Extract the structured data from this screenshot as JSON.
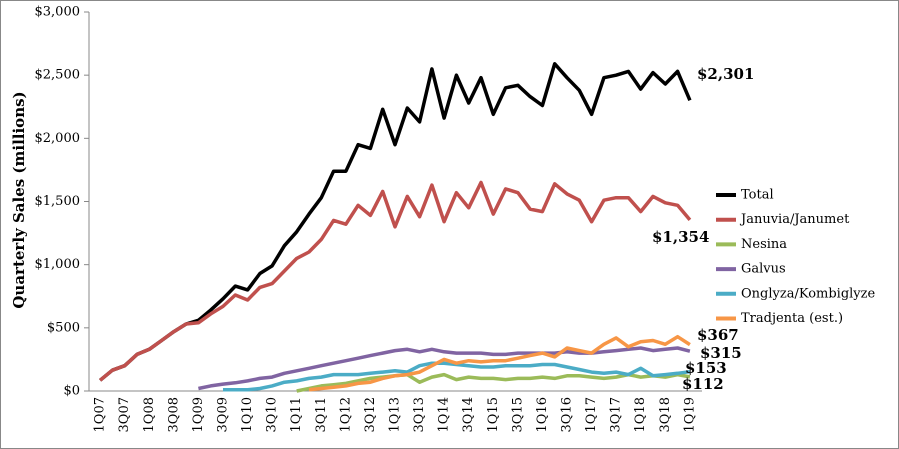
{
  "chart_data": {
    "type": "line",
    "y_label": "Quarterly Sales (millions)",
    "categories": [
      "1Q07",
      null,
      "3Q07",
      null,
      "1Q08",
      null,
      "3Q08",
      null,
      "1Q09",
      null,
      "3Q09",
      null,
      "1Q10",
      null,
      "3Q10",
      null,
      "1Q11",
      null,
      "3Q11",
      null,
      "1Q12",
      null,
      "3Q12",
      null,
      "1Q13",
      null,
      "3Q13",
      null,
      "1Q14",
      null,
      "3Q14",
      null,
      "1Q15",
      null,
      "3Q15",
      null,
      "1Q16",
      null,
      "3Q16",
      null,
      "1Q17",
      null,
      "3Q17",
      null,
      "1Q18",
      null,
      "3Q18",
      null,
      "1Q19"
    ],
    "ylim": [
      0,
      3000
    ],
    "yticks": [
      {
        "value": 0,
        "label": "$0"
      },
      {
        "value": 500,
        "label": "$500"
      },
      {
        "value": 1000,
        "label": "$1,000"
      },
      {
        "value": 1500,
        "label": "$1,500"
      },
      {
        "value": 2000,
        "label": "$2,000"
      },
      {
        "value": 2500,
        "label": "$2,500"
      },
      {
        "value": 3000,
        "label": "$3,000"
      }
    ],
    "legend": "right",
    "series": [
      {
        "name": "Total",
        "color": "#000000",
        "values": [
          85,
          165,
          200,
          290,
          330,
          400,
          470,
          530,
          560,
          640,
          730,
          830,
          800,
          930,
          990,
          1150,
          1260,
          1400,
          1530,
          1740,
          1740,
          1950,
          1920,
          2230,
          1950,
          2240,
          2130,
          2550,
          2160,
          2500,
          2280,
          2480,
          2190,
          2400,
          2420,
          2330,
          2260,
          2590,
          2480,
          2380,
          2190,
          2480,
          2500,
          2530,
          2390,
          2520,
          2430,
          2530,
          2301
        ],
        "value_labels": [
          null,
          null,
          null,
          null,
          null,
          null,
          null,
          null,
          null,
          null,
          null,
          null,
          null,
          null,
          null,
          null,
          null,
          null,
          null,
          null,
          null,
          null,
          null,
          null,
          null,
          null,
          null,
          null,
          null,
          null,
          null,
          null,
          null,
          null,
          null,
          null,
          null,
          null,
          null,
          null,
          null,
          null,
          null,
          null,
          null,
          null,
          null,
          null,
          "$2,301"
        ]
      },
      {
        "name": "Januvia/Janumet",
        "color": "#c0504d",
        "values": [
          85,
          165,
          200,
          290,
          330,
          400,
          470,
          530,
          540,
          610,
          670,
          760,
          720,
          820,
          850,
          950,
          1050,
          1100,
          1200,
          1350,
          1320,
          1470,
          1390,
          1580,
          1300,
          1540,
          1380,
          1630,
          1340,
          1570,
          1450,
          1650,
          1400,
          1600,
          1570,
          1440,
          1420,
          1640,
          1560,
          1510,
          1340,
          1510,
          1530,
          1530,
          1420,
          1540,
          1490,
          1470,
          1354
        ],
        "value_labels": [
          null,
          null,
          null,
          null,
          null,
          null,
          null,
          null,
          null,
          null,
          null,
          null,
          null,
          null,
          null,
          null,
          null,
          null,
          null,
          null,
          null,
          null,
          null,
          null,
          null,
          null,
          null,
          null,
          null,
          null,
          null,
          null,
          null,
          null,
          null,
          null,
          null,
          null,
          null,
          null,
          null,
          null,
          null,
          null,
          null,
          null,
          null,
          null,
          "$1,354"
        ]
      },
      {
        "name": "Nesina",
        "color": "#9bbb59",
        "values": [
          null,
          null,
          null,
          null,
          null,
          null,
          null,
          null,
          null,
          null,
          null,
          null,
          null,
          null,
          null,
          null,
          0,
          20,
          40,
          50,
          60,
          80,
          100,
          110,
          120,
          130,
          70,
          110,
          130,
          90,
          110,
          100,
          100,
          90,
          100,
          100,
          110,
          100,
          120,
          120,
          110,
          100,
          110,
          130,
          110,
          120,
          110,
          130,
          112
        ],
        "value_labels": [
          null,
          null,
          null,
          null,
          null,
          null,
          null,
          null,
          null,
          null,
          null,
          null,
          null,
          null,
          null,
          null,
          null,
          null,
          null,
          null,
          null,
          null,
          null,
          null,
          null,
          null,
          null,
          null,
          null,
          null,
          null,
          null,
          null,
          null,
          null,
          null,
          null,
          null,
          null,
          null,
          null,
          null,
          null,
          null,
          null,
          null,
          null,
          null,
          "$112"
        ]
      },
      {
        "name": "Galvus",
        "color": "#8064a2",
        "values": [
          null,
          null,
          null,
          null,
          null,
          null,
          null,
          null,
          20,
          40,
          55,
          65,
          80,
          100,
          110,
          140,
          160,
          180,
          200,
          220,
          240,
          260,
          280,
          300,
          320,
          330,
          310,
          330,
          310,
          300,
          300,
          300,
          290,
          290,
          300,
          300,
          300,
          300,
          310,
          300,
          300,
          310,
          320,
          330,
          340,
          320,
          330,
          340,
          315
        ],
        "value_labels": [
          null,
          null,
          null,
          null,
          null,
          null,
          null,
          null,
          null,
          null,
          null,
          null,
          null,
          null,
          null,
          null,
          null,
          null,
          null,
          null,
          null,
          null,
          null,
          null,
          null,
          null,
          null,
          null,
          null,
          null,
          null,
          null,
          null,
          null,
          null,
          null,
          null,
          null,
          null,
          null,
          null,
          null,
          null,
          null,
          null,
          null,
          null,
          null,
          "$315"
        ]
      },
      {
        "name": "Onglyza/Kombiglyze",
        "color": "#4bacc6",
        "values": [
          null,
          null,
          null,
          null,
          null,
          null,
          null,
          null,
          null,
          null,
          10,
          10,
          10,
          20,
          40,
          70,
          80,
          100,
          110,
          130,
          130,
          130,
          140,
          150,
          160,
          150,
          200,
          220,
          220,
          210,
          200,
          190,
          190,
          200,
          200,
          200,
          210,
          210,
          190,
          170,
          150,
          140,
          150,
          130,
          180,
          120,
          130,
          140,
          153
        ],
        "value_labels": [
          null,
          null,
          null,
          null,
          null,
          null,
          null,
          null,
          null,
          null,
          null,
          null,
          null,
          null,
          null,
          null,
          null,
          null,
          null,
          null,
          null,
          null,
          null,
          null,
          null,
          null,
          null,
          null,
          null,
          null,
          null,
          null,
          null,
          null,
          null,
          null,
          null,
          null,
          null,
          null,
          null,
          null,
          null,
          null,
          null,
          null,
          null,
          null,
          "$153"
        ]
      },
      {
        "name": "Tradjenta (est.)",
        "color": "#f79646",
        "values": [
          null,
          null,
          null,
          null,
          null,
          null,
          null,
          null,
          null,
          null,
          null,
          null,
          null,
          null,
          null,
          null,
          null,
          10,
          20,
          30,
          40,
          60,
          70,
          100,
          120,
          130,
          150,
          200,
          250,
          220,
          240,
          230,
          240,
          240,
          260,
          280,
          300,
          270,
          340,
          320,
          300,
          370,
          420,
          350,
          390,
          400,
          370,
          430,
          367
        ],
        "value_labels": [
          null,
          null,
          null,
          null,
          null,
          null,
          null,
          null,
          null,
          null,
          null,
          null,
          null,
          null,
          null,
          null,
          null,
          null,
          null,
          null,
          null,
          null,
          null,
          null,
          null,
          null,
          null,
          null,
          null,
          null,
          null,
          null,
          null,
          null,
          null,
          null,
          null,
          null,
          null,
          null,
          null,
          null,
          null,
          null,
          null,
          null,
          null,
          null,
          "$367"
        ]
      }
    ]
  }
}
